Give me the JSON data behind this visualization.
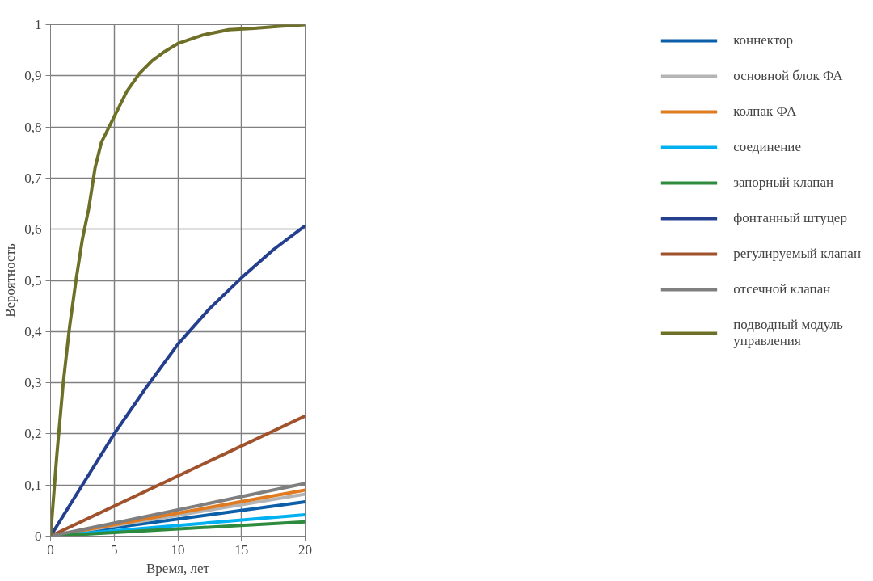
{
  "chart_data": {
    "type": "line",
    "xlabel": "Время, лет",
    "ylabel": "Вероятность",
    "xlim": [
      0,
      20
    ],
    "ylim": [
      0,
      1
    ],
    "xticks": [
      0,
      5,
      10,
      15,
      20
    ],
    "yticks": [
      0,
      {
        "value": 0.1,
        "label": "0,1"
      },
      {
        "value": 0.2,
        "label": "0,2"
      },
      {
        "value": 0.3,
        "label": "0,3"
      },
      {
        "value": 0.4,
        "label": "0,4"
      },
      {
        "value": 0.5,
        "label": "0,5"
      },
      {
        "value": 0.6,
        "label": "0,6"
      },
      {
        "value": 0.7,
        "label": "0,7"
      },
      {
        "value": 0.8,
        "label": "0,8"
      },
      {
        "value": 0.9,
        "label": "0,9"
      },
      1
    ],
    "grid": true,
    "legend": "right",
    "marker": "none",
    "line_style": "solid",
    "series": [
      {
        "name": "коннектор",
        "color": "#0b5ea8",
        "x": [
          0,
          20
        ],
        "values": [
          0,
          0.067
        ]
      },
      {
        "name": "основной блок ФА",
        "color": "#b4b4b4",
        "x": [
          0,
          20
        ],
        "values": [
          0,
          0.082
        ]
      },
      {
        "name": "колпак ФА",
        "color": "#e07b22",
        "x": [
          0,
          20
        ],
        "values": [
          0,
          0.09
        ]
      },
      {
        "name": "соединение",
        "color": "#00b0f0",
        "x": [
          0,
          20
        ],
        "values": [
          0,
          0.042
        ]
      },
      {
        "name": "запорный клапан",
        "color": "#2e8b3e",
        "x": [
          0,
          20
        ],
        "values": [
          0,
          0.028
        ]
      },
      {
        "name": "фонтанный штуцер",
        "color": "#253f8f",
        "x": [
          0,
          2.5,
          5,
          7.5,
          10,
          12.5,
          15,
          17.5,
          20
        ],
        "values": [
          0,
          0.1,
          0.2,
          0.29,
          0.375,
          0.445,
          0.505,
          0.56,
          0.607
        ]
      },
      {
        "name": "регулируемый клапан",
        "color": "#a0522d",
        "x": [
          0,
          20
        ],
        "values": [
          0,
          0.235
        ]
      },
      {
        "name": "отсечной клапан",
        "color": "#7f7f80",
        "x": [
          0,
          20
        ],
        "values": [
          0,
          0.103
        ]
      },
      {
        "name": "подводный модуль\nуправления",
        "color": "#6f7028",
        "x": [
          0,
          0.5,
          1,
          1.5,
          2,
          2.5,
          3,
          3.5,
          4,
          5,
          6,
          7,
          8,
          9,
          10,
          12,
          14,
          16,
          18,
          20
        ],
        "values": [
          0,
          0.16,
          0.3,
          0.41,
          0.5,
          0.58,
          0.64,
          0.72,
          0.77,
          0.82,
          0.87,
          0.905,
          0.93,
          0.948,
          0.963,
          0.98,
          0.99,
          0.993,
          0.997,
          1.0
        ]
      }
    ]
  }
}
